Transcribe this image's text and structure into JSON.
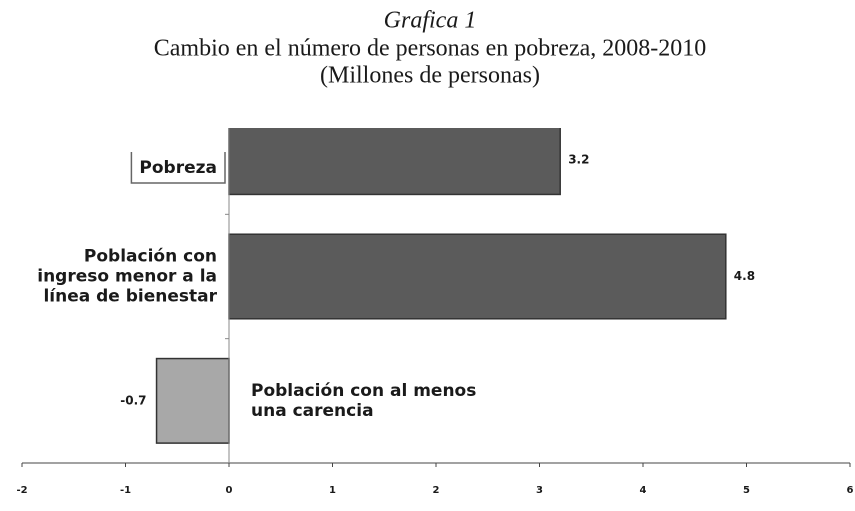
{
  "chart_data": {
    "type": "barh",
    "title": "Grafica 1",
    "subtitle": "Cambio en el número de personas en pobreza, 2008-2010",
    "units": "(Millones de personas)",
    "categories": [
      [
        "Pobreza"
      ],
      [
        "Población con",
        "ingreso menor a la",
        "línea de bienestar"
      ],
      [
        "Población con al menos",
        "una carencia"
      ]
    ],
    "values": [
      3.2,
      4.8,
      -0.7
    ],
    "colors": [
      "#5b5b5b",
      "#5b5b5b",
      "#a8a8a8"
    ],
    "xlim": [
      -2,
      6
    ],
    "xticks": [
      -2,
      -1,
      0,
      1,
      2,
      3,
      4,
      5,
      6
    ]
  }
}
